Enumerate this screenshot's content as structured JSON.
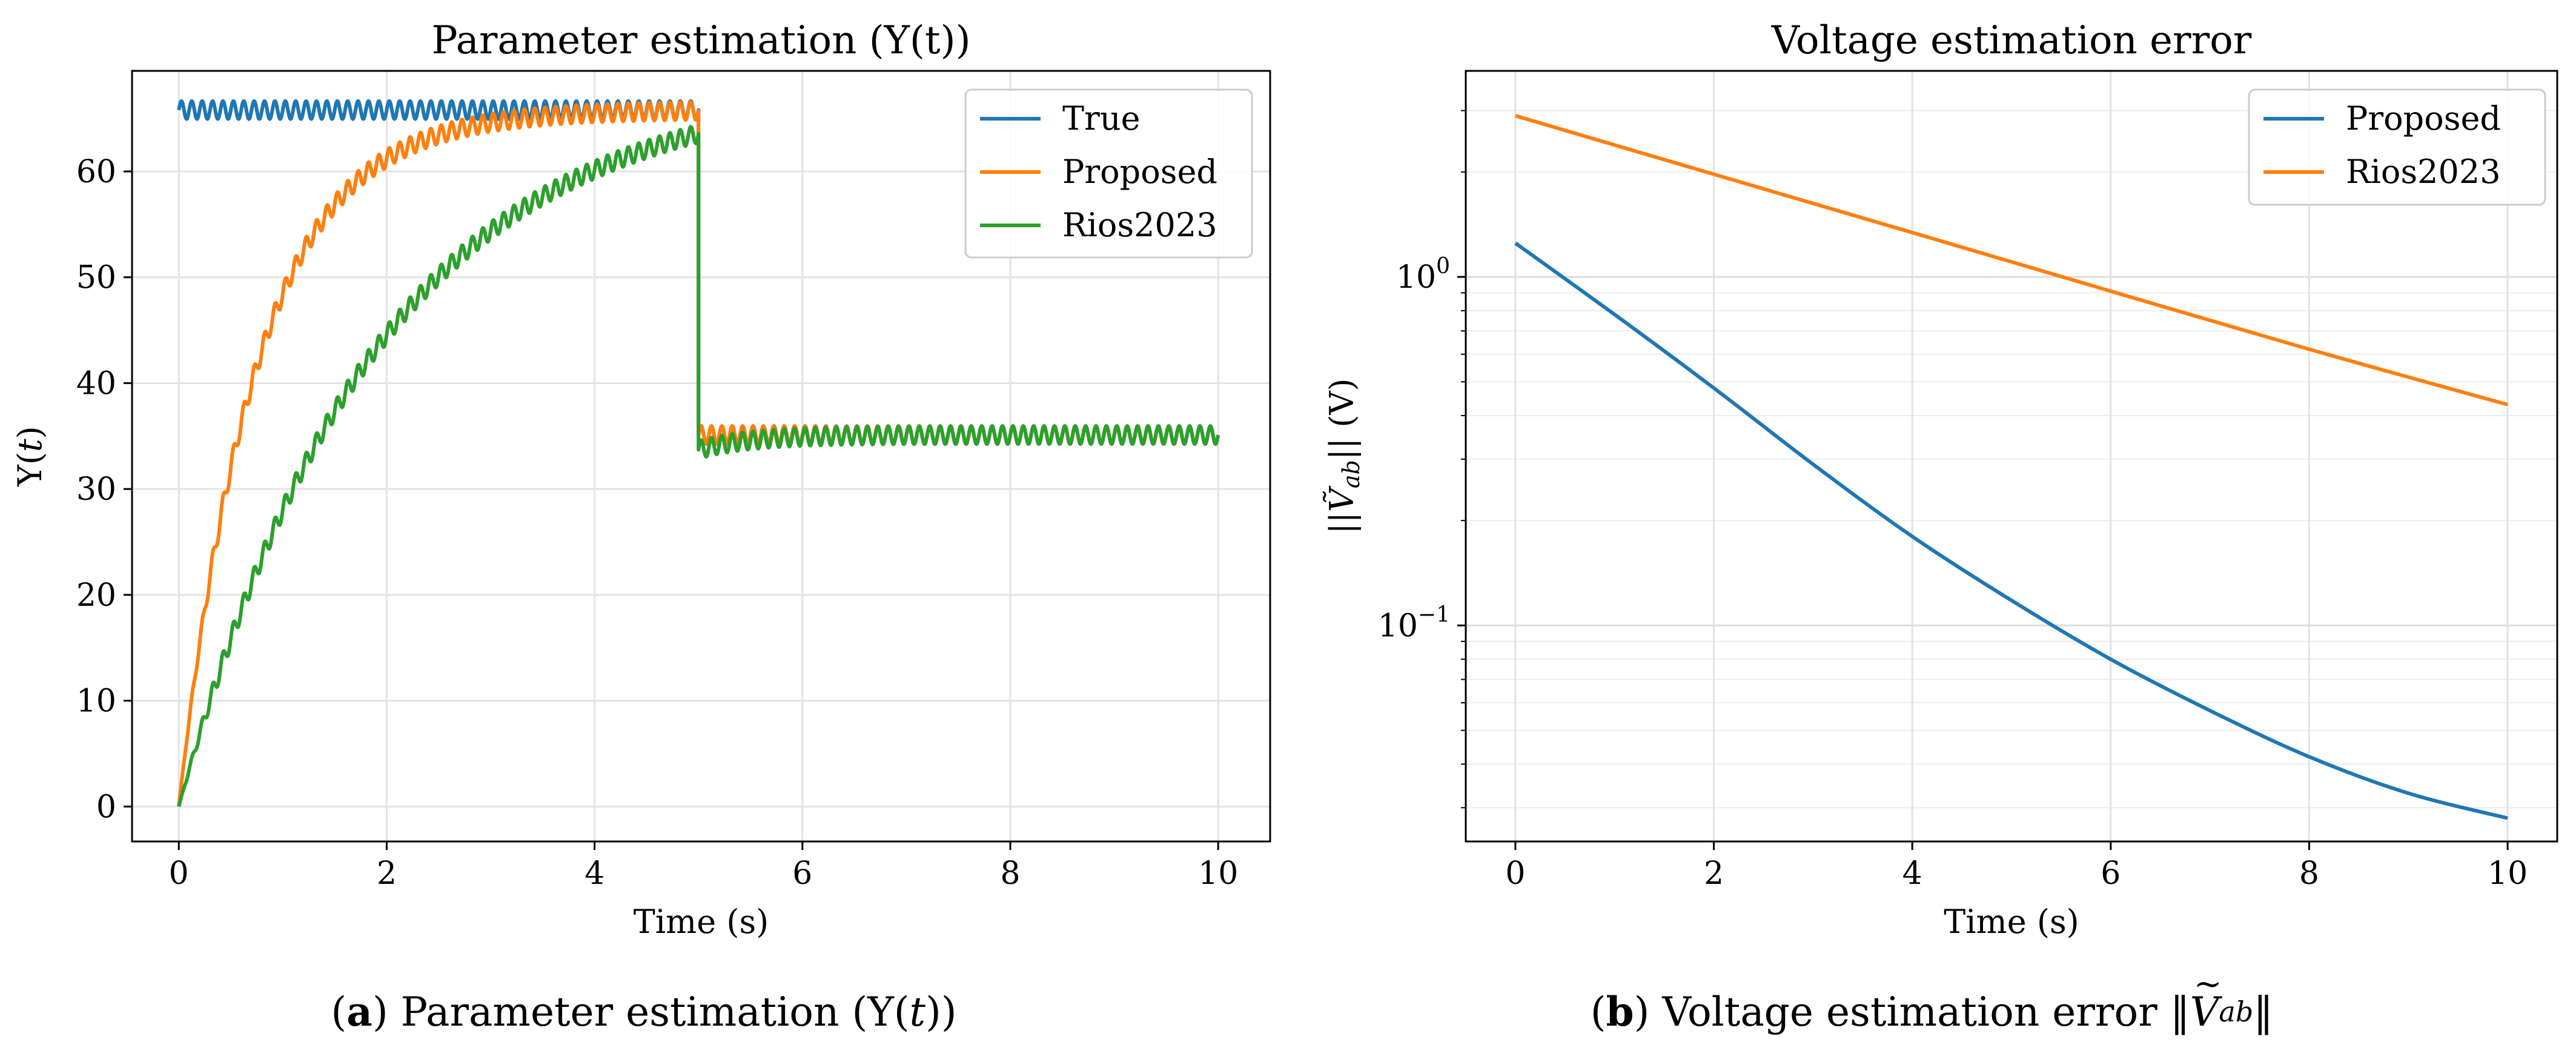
{
  "chart_data": [
    {
      "type": "line",
      "title": "Parameter estimation (Y(t))",
      "xlabel": "Time (s)",
      "ylabel": "Y(t)",
      "xlim": [
        -0.45,
        10.5
      ],
      "ylim": [
        -3.3,
        69.5
      ],
      "xticks": [
        0,
        2,
        4,
        6,
        8,
        10
      ],
      "xtick_labels": [
        "0",
        "2",
        "4",
        "6",
        "8",
        "10"
      ],
      "yticks": [
        0,
        10,
        20,
        30,
        40,
        50,
        60
      ],
      "ytick_labels": [
        "0",
        "10",
        "20",
        "30",
        "40",
        "50",
        "60"
      ],
      "grid": true,
      "legend_position": "top-right",
      "series": [
        {
          "name": "True",
          "color": "#1f77b4",
          "model": {
            "segments": [
              {
                "t_start": 0,
                "t_end": 5,
                "base": 65.8
              },
              {
                "t_start": 5,
                "t_end": 10,
                "base": 35.1
              }
            ],
            "ripple_amplitude": 0.85,
            "ripple_frequency_hz": 10
          }
        },
        {
          "name": "Proposed",
          "color": "#ff7f0e",
          "model": {
            "segments": [
              {
                "t_start": 0,
                "t_end": 5,
                "start": 0,
                "target": 65.8,
                "time_constant": 0.75
              },
              {
                "t_start": 5,
                "t_end": 10,
                "start": 35.1,
                "target": 35.1,
                "time_constant": 0.75
              }
            ],
            "ripple_amplitude": 0.85,
            "ripple_frequency_hz": 10
          }
        },
        {
          "name": "Rios2023",
          "color": "#2ca02c",
          "model": {
            "segments": [
              {
                "t_start": 0,
                "t_end": 5,
                "start": 0,
                "target": 68.5,
                "time_constant": 1.9
              },
              {
                "t_start": 5,
                "t_end": 10,
                "start": 33.7,
                "target": 35.1,
                "time_constant": 0.5
              }
            ],
            "ripple_amplitude": 0.85,
            "ripple_frequency_hz": 10
          }
        }
      ]
    },
    {
      "type": "line",
      "title": "Voltage estimation error",
      "xlabel": "Time (s)",
      "ylabel": "||Ṽab|| (V)",
      "yscale": "log",
      "xlim": [
        -0.5,
        10.5
      ],
      "ylim": [
        0.024,
        3.9
      ],
      "xticks": [
        0,
        2,
        4,
        6,
        8,
        10
      ],
      "xtick_labels": [
        "0",
        "2",
        "4",
        "6",
        "8",
        "10"
      ],
      "yticks_major": [
        0.1,
        1
      ],
      "ytick_labels": [
        {
          "base": "10",
          "exp": "−1"
        },
        {
          "base": "10",
          "exp": "0"
        }
      ],
      "yticks_minor": [
        0.03,
        0.04,
        0.05,
        0.06,
        0.07,
        0.08,
        0.09,
        0.2,
        0.3,
        0.4,
        0.5,
        0.6,
        0.7,
        0.8,
        0.9,
        2,
        3
      ],
      "grid": true,
      "legend_position": "top-right",
      "series": [
        {
          "name": "Proposed",
          "color": "#1f77b4",
          "x": [
            0,
            1,
            2,
            3,
            4,
            5,
            6,
            7,
            8,
            9,
            10
          ],
          "values": [
            1.25,
            0.78,
            0.48,
            0.29,
            0.18,
            0.118,
            0.08,
            0.057,
            0.042,
            0.033,
            0.028
          ]
        },
        {
          "name": "Rios2023",
          "color": "#ff7f0e",
          "x": [
            0,
            2,
            4,
            6,
            8,
            10
          ],
          "values": [
            2.9,
            1.97,
            1.34,
            0.91,
            0.62,
            0.43
          ]
        }
      ]
    }
  ],
  "captions": {
    "a": {
      "label": "a",
      "text": "Parameter estimation",
      "symbol": "Y",
      "var": "t"
    },
    "b": {
      "label": "b",
      "text": "Voltage estimation error",
      "symbol": "V",
      "sub": "ab"
    }
  }
}
